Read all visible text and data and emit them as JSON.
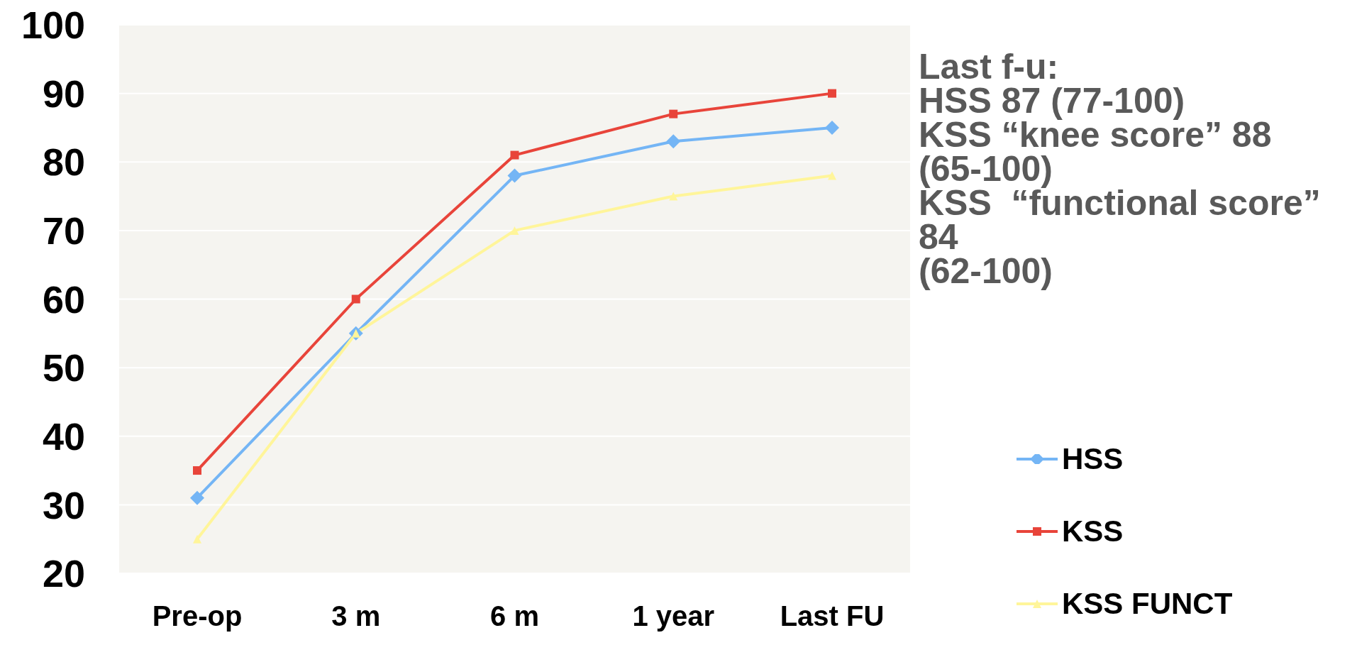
{
  "chart_data": {
    "type": "line",
    "categories": [
      "Pre-op",
      "3 m",
      "6 m",
      "1 year",
      "Last FU"
    ],
    "series": [
      {
        "name": "HSS",
        "color": "#74b5f5",
        "values": [
          31,
          55,
          78,
          83,
          85
        ],
        "marker": "diamond"
      },
      {
        "name": "KSS",
        "color": "#e8443a",
        "values": [
          35,
          60,
          81,
          87,
          90
        ],
        "marker": "square"
      },
      {
        "name": "KSS FUNCT",
        "color": "#fff59a",
        "values": [
          25,
          55,
          70,
          75,
          78
        ],
        "marker": "triangle"
      }
    ],
    "ylim": [
      20,
      100
    ],
    "yticks": [
      20,
      30,
      40,
      50,
      60,
      70,
      80,
      90,
      100
    ],
    "grid": "y",
    "legend": "bottom right",
    "annotations": [
      "Last f-u:\nHSS 87 (77-100)\nKSS “knee score” 88\n(65-100)\nKSS  “functional score”\n84\n(62-100)"
    ]
  }
}
